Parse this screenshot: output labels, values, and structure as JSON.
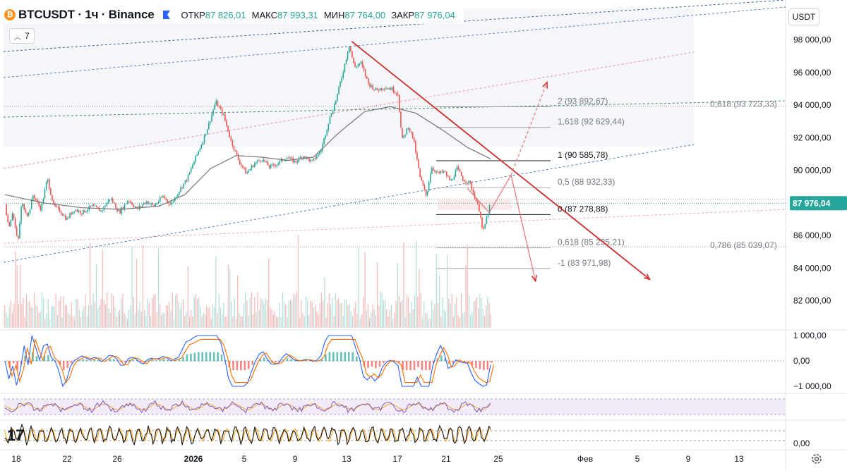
{
  "header": {
    "symbol": "BTCUSDT · 1ч · Binance",
    "open_label": "ОТКР",
    "open_value": "87 826,01",
    "high_label": "МАКС",
    "high_value": "87 993,31",
    "low_label": "МИН",
    "low_value": "87 764,00",
    "close_label": "ЗАКР",
    "close_value": "87 976,04"
  },
  "indicator_badge": "7",
  "currency": "USDT",
  "colors": {
    "up": "#26a69a",
    "down": "#ef5350",
    "trendline": "#d32f2f",
    "ma": "#757575",
    "price_label_bg": "#26a69a"
  },
  "chart_data": {
    "type": "candlestick",
    "x_ticks": [
      "18",
      "22",
      "26",
      "2026",
      "5",
      "9",
      "13",
      "17",
      "21",
      "25",
      "Фев",
      "5",
      "9",
      "13"
    ],
    "y_ticks": [
      "98 000,00",
      "96 000,00",
      "94 000,00",
      "92 000,00",
      "90 000,00",
      "88 000,00",
      "86 000,00",
      "84 000,00",
      "82 000,00"
    ],
    "ylim": [
      81000,
      99000
    ],
    "last_price": "87 976,04",
    "price_path": [
      [
        0,
        87900
      ],
      [
        0.3,
        86500
      ],
      [
        0.6,
        87500
      ],
      [
        1.0,
        85500
      ],
      [
        1.3,
        88000
      ],
      [
        1.8,
        87200
      ],
      [
        2.2,
        88500
      ],
      [
        2.8,
        87600
      ],
      [
        3.3,
        89500
      ],
      [
        3.8,
        87800
      ],
      [
        4.3,
        87500
      ],
      [
        4.8,
        87000
      ],
      [
        5.4,
        87600
      ],
      [
        6.0,
        87400
      ],
      [
        6.8,
        87800
      ],
      [
        7.5,
        87500
      ],
      [
        8.2,
        88300
      ],
      [
        8.9,
        87400
      ],
      [
        9.6,
        88200
      ],
      [
        10.3,
        87600
      ],
      [
        11.0,
        88100
      ],
      [
        11.6,
        87800
      ],
      [
        12.3,
        88400
      ],
      [
        12.9,
        87900
      ],
      [
        13.6,
        88800
      ],
      [
        14.2,
        89500
      ],
      [
        14.8,
        90700
      ],
      [
        15.3,
        91600
      ],
      [
        15.9,
        92900
      ],
      [
        16.4,
        94200
      ],
      [
        17.0,
        93400
      ],
      [
        17.6,
        91800
      ],
      [
        18.2,
        90600
      ],
      [
        18.8,
        89800
      ],
      [
        19.4,
        90400
      ],
      [
        20.0,
        90700
      ],
      [
        20.6,
        90200
      ],
      [
        21.2,
        90400
      ],
      [
        21.9,
        90800
      ],
      [
        22.6,
        90500
      ],
      [
        23.2,
        90900
      ],
      [
        23.9,
        90500
      ],
      [
        24.6,
        91200
      ],
      [
        25.2,
        93000
      ],
      [
        25.8,
        94400
      ],
      [
        26.3,
        96000
      ],
      [
        26.8,
        97700
      ],
      [
        27.2,
        96300
      ],
      [
        27.7,
        96600
      ],
      [
        28.3,
        95300
      ],
      [
        28.9,
        94900
      ],
      [
        29.5,
        95100
      ],
      [
        30.1,
        95000
      ],
      [
        30.6,
        94700
      ],
      [
        30.9,
        91800
      ],
      [
        31.4,
        92700
      ],
      [
        31.8,
        91900
      ],
      [
        32.3,
        89600
      ],
      [
        32.8,
        88400
      ],
      [
        33.2,
        90200
      ],
      [
        33.7,
        89800
      ],
      [
        34.2,
        89900
      ],
      [
        34.7,
        89300
      ],
      [
        35.2,
        90100
      ],
      [
        35.7,
        89400
      ],
      [
        36.2,
        89200
      ],
      [
        36.6,
        88300
      ],
      [
        37.0,
        87400
      ],
      [
        37.2,
        86100
      ],
      [
        37.5,
        87100
      ],
      [
        37.8,
        87976
      ]
    ],
    "moving_average": [
      [
        0,
        88500
      ],
      [
        3,
        88000
      ],
      [
        6,
        87700
      ],
      [
        9,
        87600
      ],
      [
        12,
        87800
      ],
      [
        14,
        88500
      ],
      [
        16,
        90100
      ],
      [
        18,
        90900
      ],
      [
        20,
        90800
      ],
      [
        22,
        90600
      ],
      [
        24,
        90800
      ],
      [
        26,
        92300
      ],
      [
        28,
        93600
      ],
      [
        30,
        93900
      ],
      [
        32,
        93500
      ],
      [
        34,
        92500
      ],
      [
        36,
        91400
      ],
      [
        37.8,
        90700
      ]
    ],
    "trendline_main": {
      "from": [
        27.0,
        97900
      ],
      "to": [
        50.2,
        83300
      ]
    },
    "projection_path": [
      [
        36.0,
        88900
      ],
      [
        37.7,
        87400
      ],
      [
        39.4,
        89700
      ],
      [
        41.3,
        83200
      ]
    ],
    "projection_up": [
      [
        39.4,
        89700
      ],
      [
        42.2,
        95400
      ]
    ],
    "fib_levels": [
      {
        "label": "2 (93 892,67)",
        "price": 93892.67
      },
      {
        "label": "1,618 (92 629,44)",
        "price": 92629.44
      },
      {
        "label": "1 (90 585,78)",
        "price": 90585.78
      },
      {
        "label": "0,5 (88 932,33)",
        "price": 88932.33
      },
      {
        "label": "0 (87 278,88)",
        "price": 87278.88
      },
      {
        "label": "0,618 (85 235,21)",
        "price": 85235.21
      },
      {
        "label": "-1 (83 971,98)",
        "price": 83971.98
      }
    ],
    "fib_right_labels": [
      {
        "label": "0,618 (93 723,33)",
        "price": 93723.33
      },
      {
        "label": "0,786 (85 039,07)",
        "price": 85039.07
      }
    ],
    "macd": {
      "y_ticks": [
        "1 000,00",
        "0,00",
        "−1 000,00"
      ],
      "ylim": [
        -1300,
        1300
      ]
    },
    "stoch": {
      "y_ticks": [
        "0,00"
      ]
    }
  }
}
